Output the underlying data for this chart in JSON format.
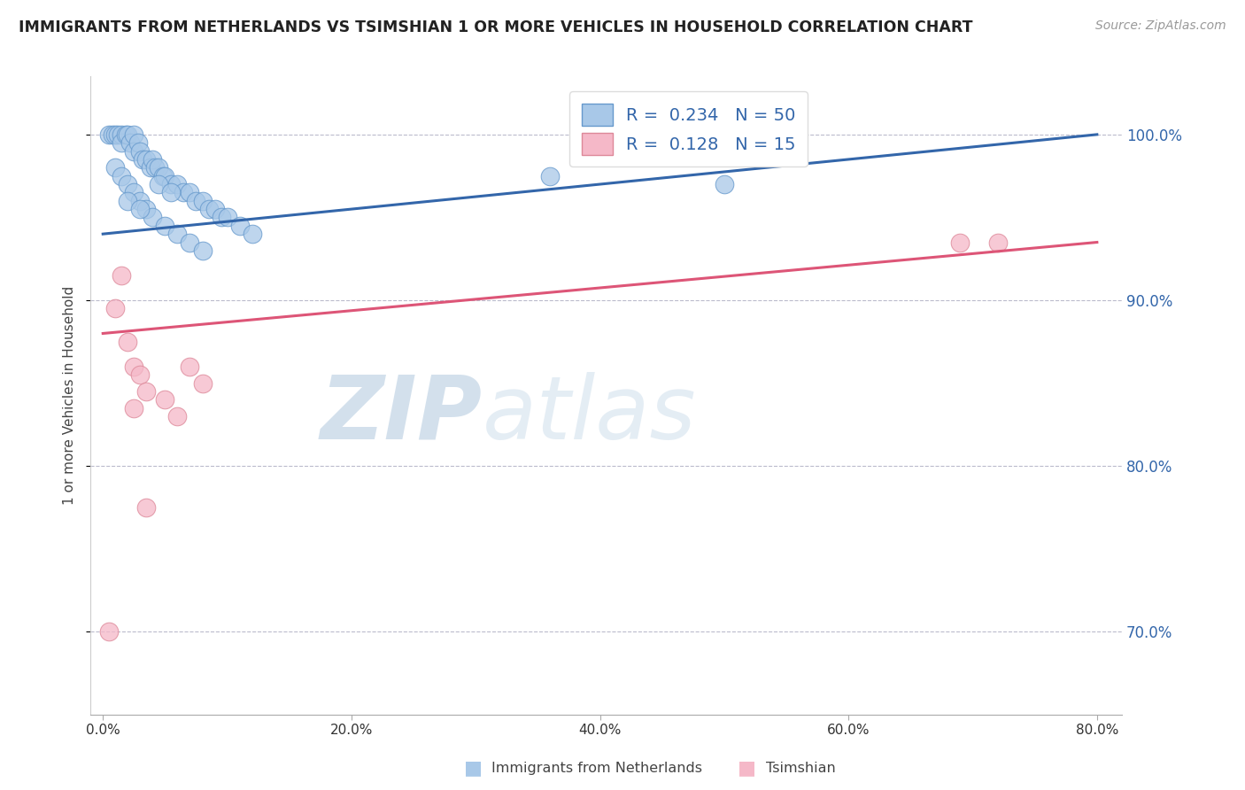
{
  "title": "IMMIGRANTS FROM NETHERLANDS VS TSIMSHIAN 1 OR MORE VEHICLES IN HOUSEHOLD CORRELATION CHART",
  "source": "Source: ZipAtlas.com",
  "ylabel": "1 or more Vehicles in Household",
  "x_tick_values": [
    0.0,
    20.0,
    40.0,
    60.0,
    80.0
  ],
  "y_tick_values": [
    70.0,
    80.0,
    90.0,
    100.0
  ],
  "xlim": [
    -1.0,
    82.0
  ],
  "ylim": [
    65.0,
    103.5
  ],
  "legend_label1": "Immigrants from Netherlands",
  "legend_label2": "Tsimshian",
  "R1": 0.234,
  "N1": 50,
  "R2": 0.128,
  "N2": 15,
  "blue_color": "#a8c8e8",
  "blue_edge_color": "#6699cc",
  "blue_line_color": "#3366aa",
  "pink_color": "#f5b8c8",
  "pink_edge_color": "#dd8899",
  "pink_line_color": "#dd5577",
  "bg_color": "#ffffff",
  "grid_color": "#bbbbcc",
  "title_color": "#222222",
  "axis_label_color": "#3366aa",
  "watermark_color_zip": "#b8cce0",
  "watermark_color_atlas": "#c8dce8",
  "blue_scatter_x": [
    0.5,
    0.8,
    1.0,
    1.2,
    1.5,
    1.5,
    1.8,
    2.0,
    2.2,
    2.5,
    2.5,
    2.8,
    3.0,
    3.2,
    3.5,
    3.8,
    4.0,
    4.2,
    4.5,
    4.8,
    5.0,
    5.5,
    6.0,
    6.5,
    7.0,
    7.5,
    8.0,
    8.5,
    9.0,
    9.5,
    10.0,
    11.0,
    12.0,
    1.0,
    1.5,
    2.0,
    2.5,
    3.0,
    3.5,
    4.0,
    5.0,
    6.0,
    7.0,
    8.0,
    4.5,
    5.5,
    36.0,
    50.0,
    2.0,
    3.0
  ],
  "blue_scatter_y": [
    100.0,
    100.0,
    100.0,
    100.0,
    100.0,
    99.5,
    100.0,
    100.0,
    99.5,
    100.0,
    99.0,
    99.5,
    99.0,
    98.5,
    98.5,
    98.0,
    98.5,
    98.0,
    98.0,
    97.5,
    97.5,
    97.0,
    97.0,
    96.5,
    96.5,
    96.0,
    96.0,
    95.5,
    95.5,
    95.0,
    95.0,
    94.5,
    94.0,
    98.0,
    97.5,
    97.0,
    96.5,
    96.0,
    95.5,
    95.0,
    94.5,
    94.0,
    93.5,
    93.0,
    97.0,
    96.5,
    97.5,
    97.0,
    96.0,
    95.5
  ],
  "pink_scatter_x": [
    1.0,
    1.5,
    2.0,
    2.5,
    3.0,
    3.5,
    5.0,
    6.0,
    7.0,
    8.0,
    0.5,
    69.0,
    72.0,
    2.5,
    3.5
  ],
  "pink_scatter_y": [
    89.5,
    91.5,
    87.5,
    86.0,
    85.5,
    84.5,
    84.0,
    83.0,
    86.0,
    85.0,
    70.0,
    93.5,
    93.5,
    83.5,
    77.5
  ],
  "blue_trendline_x": [
    0.0,
    80.0
  ],
  "blue_trendline_y": [
    94.0,
    100.0
  ],
  "pink_trendline_x": [
    0.0,
    80.0
  ],
  "pink_trendline_y": [
    88.0,
    93.5
  ]
}
